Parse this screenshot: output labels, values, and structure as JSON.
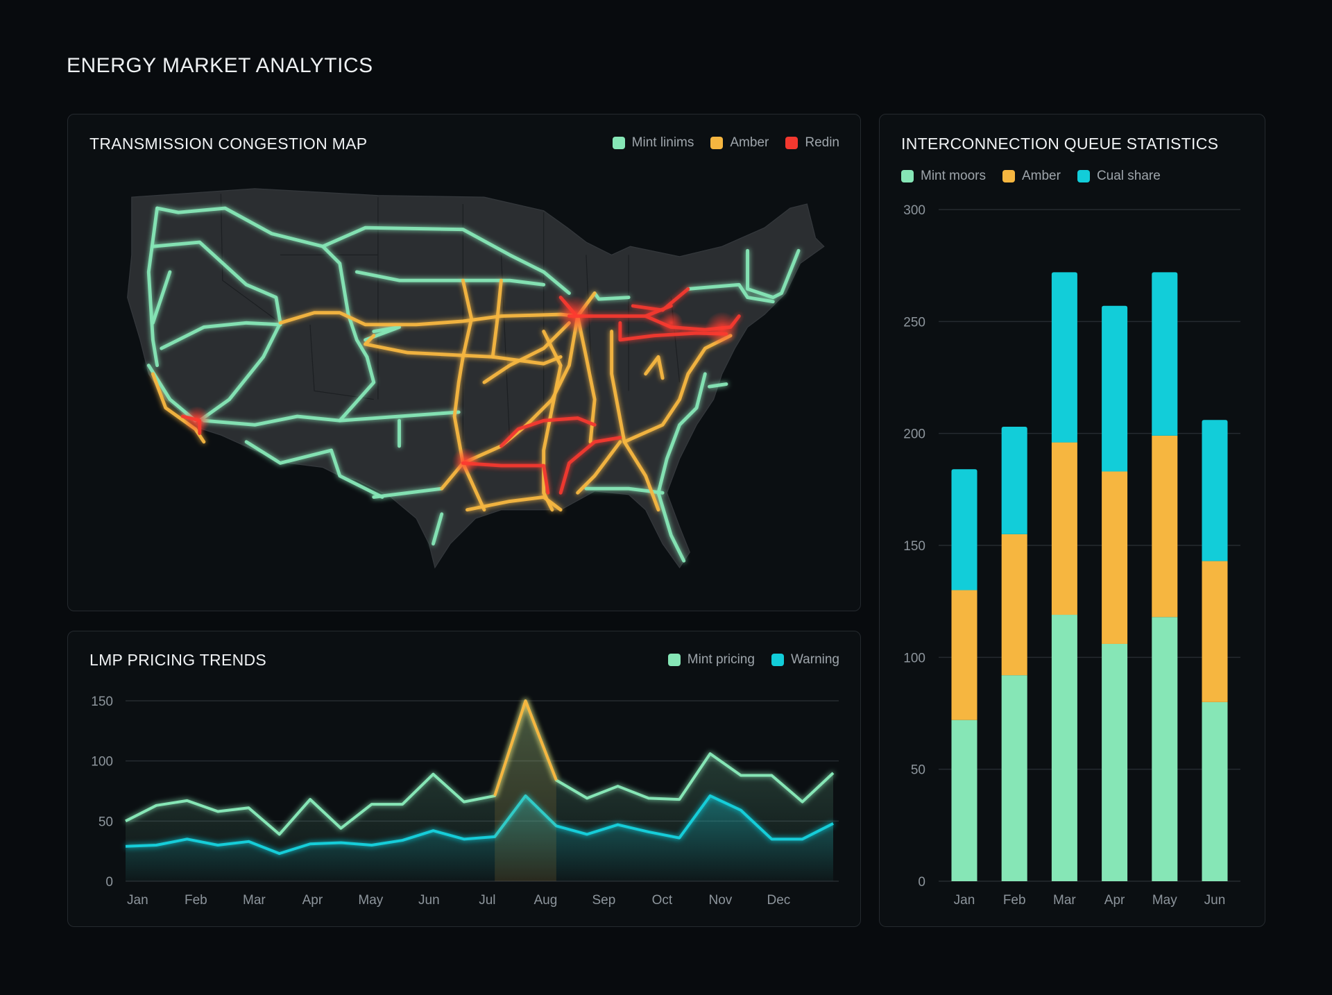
{
  "title": "ENERGY MARKET ANALYTICS",
  "colors": {
    "mint": "#86e6b6",
    "amber": "#f6b640",
    "cyan": "#12cdd9",
    "red": "#f2382f",
    "land": "#2b2e31",
    "background": "#080b0e"
  },
  "map": {
    "title": "TRANSMISSION CONGESTION MAP",
    "legend": [
      {
        "label": "Mint linims",
        "color": "#86e6b6"
      },
      {
        "label": "Amber",
        "color": "#f6b640"
      },
      {
        "label": "Redin",
        "color": "#f2382f"
      }
    ]
  },
  "chart_data": [
    {
      "type": "line",
      "title": "LMP PRICING TRENDS",
      "x_tick_labels": [
        "Jan",
        "Feb",
        "Mar",
        "Apr",
        "May",
        "Jun",
        "Jul",
        "Aug",
        "Sep",
        "Oct",
        "Nov",
        "Dec"
      ],
      "points_per_month": 2,
      "ylim": [
        0,
        150
      ],
      "y_ticks": [
        0,
        50,
        100,
        150
      ],
      "grid": true,
      "legend_position": "top-right",
      "series": [
        {
          "name": "Mint pricing",
          "color": "#86e6b6",
          "values": [
            50,
            63,
            67,
            58,
            61,
            39,
            68,
            44,
            64,
            64,
            89,
            66,
            71,
            150,
            84,
            69,
            79,
            69,
            68,
            106,
            88,
            88,
            66,
            90
          ],
          "highlight": {
            "from_index": 12,
            "to_index": 14,
            "color": "#f6b640"
          }
        },
        {
          "name": "Warning",
          "color": "#12cdd9",
          "values": [
            29,
            30,
            35,
            30,
            33,
            23,
            31,
            32,
            30,
            34,
            42,
            35,
            37,
            71,
            46,
            39,
            47,
            41,
            36,
            71,
            59,
            35,
            35,
            48
          ]
        }
      ]
    },
    {
      "type": "bar",
      "stacked": true,
      "title": "INTERCONNECTION QUEUE STATISTICS",
      "categories": [
        "Jan",
        "Feb",
        "Mar",
        "Apr",
        "May",
        "Jun"
      ],
      "ylim": [
        0,
        300
      ],
      "y_ticks": [
        0,
        50,
        100,
        150,
        200,
        250,
        300
      ],
      "grid": true,
      "legend_position": "top-left",
      "series": [
        {
          "name": "Mint moors",
          "color": "#86e6b6",
          "values": [
            72,
            92,
            119,
            106,
            118,
            80
          ]
        },
        {
          "name": "Amber",
          "color": "#f6b640",
          "values": [
            58,
            63,
            77,
            77,
            81,
            63
          ]
        },
        {
          "name": "Cual share",
          "color": "#12cdd9",
          "values": [
            54,
            48,
            76,
            74,
            73,
            63
          ]
        }
      ]
    }
  ]
}
